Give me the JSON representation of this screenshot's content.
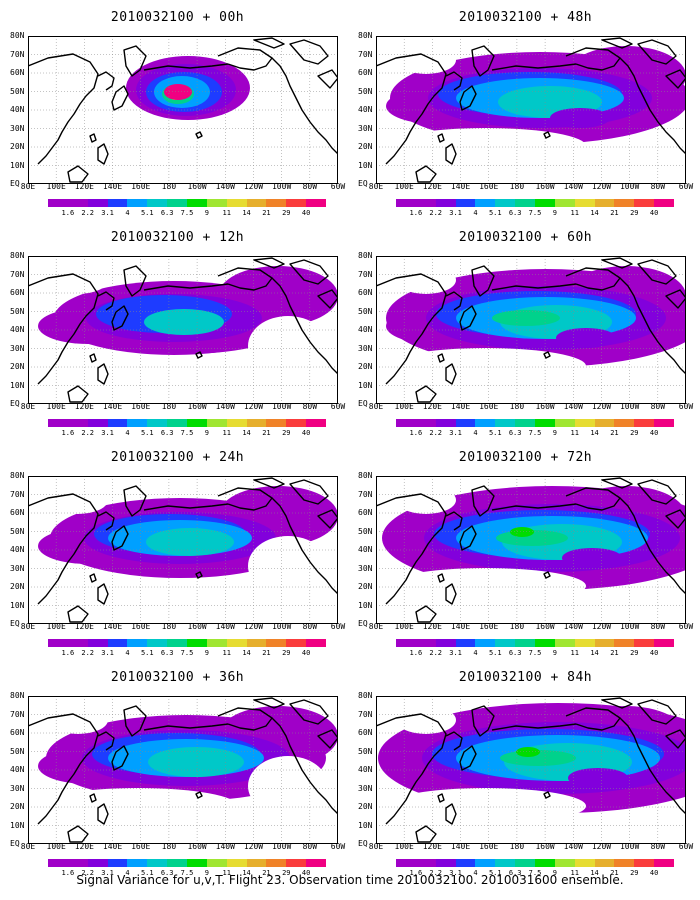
{
  "panels": [
    {
      "title": "2010032100 + 00h",
      "stage": 0
    },
    {
      "title": "2010032100 + 48h",
      "stage": 4
    },
    {
      "title": "2010032100 + 12h",
      "stage": 1
    },
    {
      "title": "2010032100 + 60h",
      "stage": 5
    },
    {
      "title": "2010032100 + 24h",
      "stage": 2
    },
    {
      "title": "2010032100 + 72h",
      "stage": 6
    },
    {
      "title": "2010032100 + 36h",
      "stage": 3
    },
    {
      "title": "2010032100 + 84h",
      "stage": 7
    }
  ],
  "lat_labels": [
    "80N",
    "70N",
    "60N",
    "50N",
    "40N",
    "30N",
    "20N",
    "10N",
    "EQ"
  ],
  "lon_labels": [
    "80E",
    "100E",
    "120E",
    "140E",
    "160E",
    "180",
    "160W",
    "140W",
    "120W",
    "100W",
    "80W",
    "60W"
  ],
  "colorbar": {
    "labels": [
      "1.6",
      "2.2",
      "3.1",
      "4",
      "5.1",
      "6.3",
      "7.5",
      "9",
      "11",
      "14",
      "21",
      "29",
      "40"
    ],
    "colors": [
      "#a000c8",
      "#8200dc",
      "#1e3cff",
      "#00a0ff",
      "#00c8c8",
      "#00d28c",
      "#00dc00",
      "#a0e632",
      "#e6dc32",
      "#e6af2d",
      "#f08228",
      "#fa3c3c",
      "#f00082"
    ]
  },
  "caption": "Signal Variance for u,v,T. Flight 23. Observation time 2010032100. 2010031600 ensemble."
}
